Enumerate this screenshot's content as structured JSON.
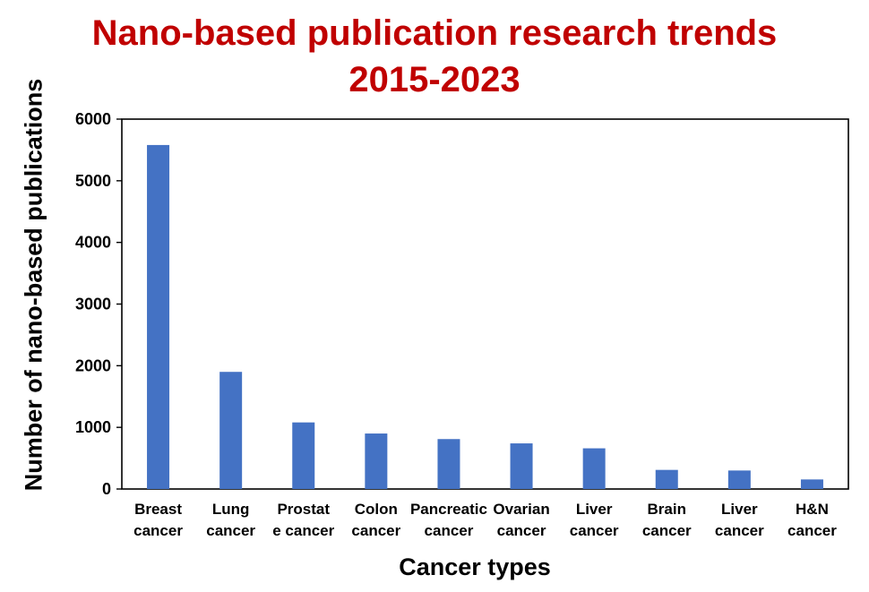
{
  "chart_data": {
    "type": "bar",
    "title": "Nano-based publication research trends",
    "subtitle": "2015-2023",
    "xlabel": "Cancer types",
    "ylabel": "Number of nano-based publications",
    "categories": [
      [
        "Breast",
        "cancer"
      ],
      [
        "Lung",
        "cancer"
      ],
      [
        "Prostat",
        "e cancer"
      ],
      [
        "Colon",
        "cancer"
      ],
      [
        "Pancreatic",
        "cancer"
      ],
      [
        "Ovarian",
        "cancer"
      ],
      [
        "Liver",
        "cancer"
      ],
      [
        "Brain",
        "cancer"
      ],
      [
        "Liver",
        "cancer"
      ],
      [
        "H&N",
        "cancer"
      ]
    ],
    "values": [
      5580,
      1900,
      1080,
      900,
      810,
      740,
      660,
      310,
      300,
      155
    ],
    "ylim": [
      0,
      6000
    ],
    "yticks": [
      "0",
      "1000",
      "2000",
      "3000",
      "4000",
      "5000",
      "6000"
    ],
    "grid": false,
    "legend": "none",
    "bar_color": "#4472c4",
    "title_color": "#c00000"
  }
}
